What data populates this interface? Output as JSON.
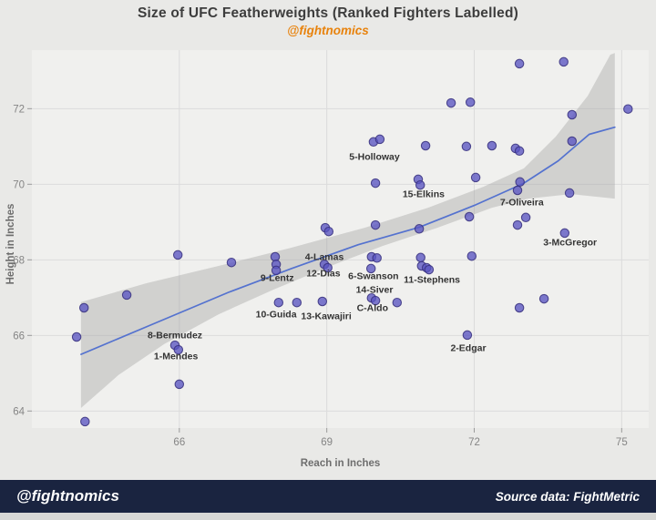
{
  "header": {
    "title": "Size of UFC Featherweights (Ranked Fighters Labelled)",
    "subtitle": "@fightnomics"
  },
  "footer": {
    "brand": "@fightnomics",
    "source": "Source data: FightMetric"
  },
  "colors": {
    "page_bg": "#e9e9e7",
    "panel_bg": "#f0f0ee",
    "grid": "#dbdbdb",
    "tick_mark": "#9a9a9a",
    "tick_text": "#858585",
    "axis_title_text": "#6e6e6e",
    "title_text": "#3d3d3d",
    "subtitle_orange": "#e8820c",
    "point_fill": "#5a54c2",
    "point_stroke": "#37307e",
    "trend_line": "#5472cf",
    "band_gray": "#9e9e9e",
    "fighter_label_text": "#333333",
    "footer_bg": "#1a2440",
    "footer_text": "#ffffff"
  },
  "chart_data": {
    "type": "scatter",
    "title": "Size of UFC Featherweights (Ranked Fighters Labelled)",
    "subtitle": "@fightnomics",
    "xlabel": "Reach in Inches",
    "ylabel": "Height in Inches",
    "xlim": [
      63.0,
      75.55
    ],
    "ylim": [
      63.55,
      73.55
    ],
    "xticks": [
      66,
      69,
      72,
      75
    ],
    "yticks": [
      64,
      66,
      68,
      70,
      72
    ],
    "grid": true,
    "legend": false,
    "points": [
      [
        64.08,
        63.72
      ],
      [
        63.91,
        65.96
      ],
      [
        64.06,
        66.73
      ],
      [
        64.93,
        67.07
      ],
      [
        65.91,
        65.74
      ],
      [
        65.98,
        65.62
      ],
      [
        66.0,
        64.71
      ],
      [
        65.97,
        68.13
      ],
      [
        67.06,
        67.93
      ],
      [
        67.95,
        68.08
      ],
      [
        67.97,
        67.88
      ],
      [
        67.97,
        67.72
      ],
      [
        68.02,
        66.87
      ],
      [
        68.39,
        66.87
      ],
      [
        68.91,
        66.9
      ],
      [
        68.97,
        68.85
      ],
      [
        69.04,
        68.75
      ],
      [
        68.95,
        67.88
      ],
      [
        69.02,
        67.79
      ],
      [
        69.91,
        68.08
      ],
      [
        70.02,
        68.05
      ],
      [
        69.9,
        67.77
      ],
      [
        69.91,
        66.99
      ],
      [
        69.99,
        66.92
      ],
      [
        70.43,
        66.87
      ],
      [
        69.95,
        71.12
      ],
      [
        70.08,
        71.19
      ],
      [
        69.99,
        70.03
      ],
      [
        70.86,
        70.13
      ],
      [
        70.9,
        69.98
      ],
      [
        69.99,
        68.92
      ],
      [
        70.88,
        68.82
      ],
      [
        71.01,
        71.02
      ],
      [
        71.53,
        72.15
      ],
      [
        71.92,
        72.17
      ],
      [
        71.84,
        71.0
      ],
      [
        72.36,
        71.02
      ],
      [
        72.84,
        70.95
      ],
      [
        72.92,
        70.88
      ],
      [
        72.03,
        70.18
      ],
      [
        71.9,
        69.14
      ],
      [
        72.92,
        73.19
      ],
      [
        73.82,
        73.24
      ],
      [
        73.99,
        71.84
      ],
      [
        75.13,
        71.99
      ],
      [
        73.99,
        71.14
      ],
      [
        73.94,
        69.77
      ],
      [
        72.93,
        70.06
      ],
      [
        72.88,
        69.84
      ],
      [
        73.05,
        69.12
      ],
      [
        72.88,
        68.92
      ],
      [
        73.84,
        68.71
      ],
      [
        70.91,
        68.06
      ],
      [
        70.93,
        67.84
      ],
      [
        71.03,
        67.79
      ],
      [
        71.08,
        67.74
      ],
      [
        71.95,
        68.1
      ],
      [
        71.86,
        66.01
      ],
      [
        73.42,
        66.97
      ],
      [
        72.92,
        66.73
      ]
    ],
    "labeled_fighters": [
      {
        "label": "1-Mendes",
        "point": [
          65.98,
          65.62
        ],
        "label_pos": [
          65.93,
          65.45
        ]
      },
      {
        "label": "2-Edgar",
        "point": [
          71.86,
          66.01
        ],
        "label_pos": [
          71.88,
          65.67
        ]
      },
      {
        "label": "3-McGregor",
        "point": [
          73.84,
          68.71
        ],
        "label_pos": [
          73.95,
          68.47
        ]
      },
      {
        "label": "4-Lamas",
        "point": [
          68.97,
          68.85
        ],
        "label_pos": [
          68.95,
          68.08
        ]
      },
      {
        "label": "5-Holloway",
        "point": [
          69.95,
          71.12
        ],
        "label_pos": [
          69.97,
          70.73
        ]
      },
      {
        "label": "6-Swanson",
        "point": [
          69.9,
          67.77
        ],
        "label_pos": [
          69.95,
          67.57
        ]
      },
      {
        "label": "7-Oliveira",
        "point": [
          72.88,
          69.84
        ],
        "label_pos": [
          72.97,
          69.53
        ]
      },
      {
        "label": "8-Bermudez",
        "point": [
          65.91,
          65.74
        ],
        "label_pos": [
          65.91,
          66.01
        ]
      },
      {
        "label": "9-Lentz",
        "point": [
          67.97,
          67.72
        ],
        "label_pos": [
          67.99,
          67.53
        ]
      },
      {
        "label": "10-Guida",
        "point": [
          68.02,
          66.87
        ],
        "label_pos": [
          67.97,
          66.56
        ]
      },
      {
        "label": "11-Stephens",
        "point": [
          71.03,
          67.79
        ],
        "label_pos": [
          71.14,
          67.48
        ]
      },
      {
        "label": "12-Dias",
        "point": [
          69.02,
          67.79
        ],
        "label_pos": [
          68.93,
          67.65
        ]
      },
      {
        "label": "13-Kawajiri",
        "point": [
          68.91,
          66.9
        ],
        "label_pos": [
          68.99,
          66.51
        ]
      },
      {
        "label": "14-Siver",
        "point": [
          69.91,
          66.99
        ],
        "label_pos": [
          69.97,
          67.21
        ]
      },
      {
        "label": "15-Elkins",
        "point": [
          70.9,
          69.98
        ],
        "label_pos": [
          70.97,
          69.74
        ]
      },
      {
        "label": "C-Aldo",
        "point": [
          69.99,
          66.92
        ],
        "label_pos": [
          69.93,
          66.73
        ]
      }
    ],
    "trend_line": [
      [
        64.0,
        65.5
      ],
      [
        65.5,
        66.32
      ],
      [
        67.0,
        67.14
      ],
      [
        68.28,
        67.77
      ],
      [
        69.64,
        68.4
      ],
      [
        70.88,
        68.86
      ],
      [
        72.0,
        69.44
      ],
      [
        73.0,
        70.02
      ],
      [
        73.71,
        70.62
      ],
      [
        74.34,
        71.32
      ],
      [
        74.86,
        71.51
      ]
    ],
    "confidence_band": [
      [
        64.0,
        66.88
      ],
      [
        65.32,
        67.38
      ],
      [
        66.8,
        67.84
      ],
      [
        68.28,
        68.32
      ],
      [
        69.77,
        68.85
      ],
      [
        71.06,
        69.38
      ],
      [
        72.18,
        69.93
      ],
      [
        73.01,
        70.42
      ],
      [
        73.66,
        71.26
      ],
      [
        74.31,
        72.34
      ],
      [
        74.77,
        73.43
      ],
      [
        74.86,
        73.47
      ],
      [
        74.86,
        69.62
      ],
      [
        73.97,
        69.74
      ],
      [
        73.1,
        69.62
      ],
      [
        72.36,
        69.38
      ],
      [
        71.25,
        68.85
      ],
      [
        70.14,
        68.37
      ],
      [
        69.02,
        67.81
      ],
      [
        67.91,
        67.21
      ],
      [
        66.8,
        66.56
      ],
      [
        65.69,
        65.77
      ],
      [
        64.76,
        64.95
      ],
      [
        64.0,
        64.08
      ]
    ]
  }
}
